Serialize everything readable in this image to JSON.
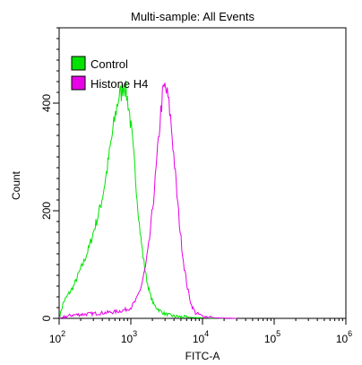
{
  "chart_data": {
    "type": "histogram-line",
    "title": "Multi-sample: All Events",
    "xlabel": "FITC-A",
    "ylabel": "Count",
    "x_scale": "log",
    "xlim": [
      100,
      1000000
    ],
    "ylim": [
      0,
      540
    ],
    "x_ticks": [
      {
        "base": "10",
        "exp": "2",
        "value": 100
      },
      {
        "base": "10",
        "exp": "3",
        "value": 1000
      },
      {
        "base": "10",
        "exp": "4",
        "value": 10000
      },
      {
        "base": "10",
        "exp": "5",
        "value": 100000
      },
      {
        "base": "10",
        "exp": "6",
        "value": 1000000
      }
    ],
    "y_ticks": [
      0,
      200,
      400
    ],
    "legend_position": "top-left",
    "series": [
      {
        "name": "Control",
        "color": "#00e400",
        "points": [
          [
            100,
            0
          ],
          [
            115,
            30
          ],
          [
            135,
            45
          ],
          [
            160,
            60
          ],
          [
            190,
            85
          ],
          [
            220,
            105
          ],
          [
            260,
            130
          ],
          [
            300,
            160
          ],
          [
            340,
            185
          ],
          [
            380,
            210
          ],
          [
            420,
            240
          ],
          [
            470,
            280
          ],
          [
            520,
            320
          ],
          [
            580,
            360
          ],
          [
            630,
            390
          ],
          [
            690,
            415
          ],
          [
            750,
            420
          ],
          [
            800,
            440
          ],
          [
            860,
            420
          ],
          [
            920,
            400
          ],
          [
            980,
            370
          ],
          [
            1050,
            330
          ],
          [
            1150,
            270
          ],
          [
            1250,
            210
          ],
          [
            1350,
            160
          ],
          [
            1500,
            110
          ],
          [
            1650,
            75
          ],
          [
            1850,
            45
          ],
          [
            2100,
            25
          ],
          [
            2500,
            15
          ],
          [
            3000,
            8
          ],
          [
            4000,
            4
          ],
          [
            6000,
            2
          ],
          [
            10000,
            1
          ],
          [
            20000,
            0
          ]
        ]
      },
      {
        "name": "Histone H4",
        "color": "#e800e8",
        "points": [
          [
            100,
            0
          ],
          [
            150,
            6
          ],
          [
            250,
            8
          ],
          [
            400,
            10
          ],
          [
            600,
            12
          ],
          [
            800,
            15
          ],
          [
            1000,
            20
          ],
          [
            1200,
            35
          ],
          [
            1400,
            60
          ],
          [
            1600,
            95
          ],
          [
            1800,
            140
          ],
          [
            2000,
            200
          ],
          [
            2200,
            260
          ],
          [
            2400,
            320
          ],
          [
            2600,
            380
          ],
          [
            2800,
            420
          ],
          [
            3000,
            430
          ],
          [
            3300,
            410
          ],
          [
            3600,
            370
          ],
          [
            4000,
            300
          ],
          [
            4400,
            230
          ],
          [
            4900,
            160
          ],
          [
            5500,
            100
          ],
          [
            6200,
            55
          ],
          [
            7000,
            25
          ],
          [
            8000,
            10
          ],
          [
            10000,
            4
          ],
          [
            15000,
            1
          ],
          [
            30000,
            0
          ]
        ]
      }
    ]
  }
}
